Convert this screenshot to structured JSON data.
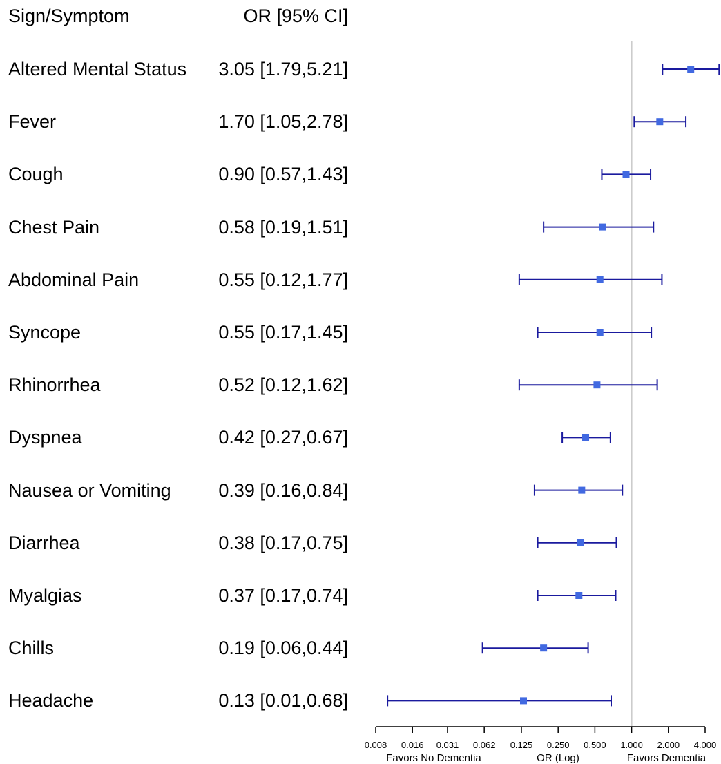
{
  "chart_data": {
    "type": "forest",
    "header": {
      "label": "Sign/Symptom",
      "stat": "OR [95% CI]"
    },
    "rows": [
      {
        "name": "Altered Mental Status",
        "or": 3.05,
        "lo": 1.79,
        "hi": 5.21,
        "text": "3.05 [1.79,5.21]"
      },
      {
        "name": "Fever",
        "or": 1.7,
        "lo": 1.05,
        "hi": 2.78,
        "text": "1.70 [1.05,2.78]"
      },
      {
        "name": "Cough",
        "or": 0.9,
        "lo": 0.57,
        "hi": 1.43,
        "text": "0.90 [0.57,1.43]"
      },
      {
        "name": "Chest Pain",
        "or": 0.58,
        "lo": 0.19,
        "hi": 1.51,
        "text": "0.58 [0.19,1.51]"
      },
      {
        "name": "Abdominal Pain",
        "or": 0.55,
        "lo": 0.12,
        "hi": 1.77,
        "text": "0.55 [0.12,1.77]"
      },
      {
        "name": "Syncope",
        "or": 0.55,
        "lo": 0.17,
        "hi": 1.45,
        "text": "0.55 [0.17,1.45]"
      },
      {
        "name": "Rhinorrhea",
        "or": 0.52,
        "lo": 0.12,
        "hi": 1.62,
        "text": "0.52 [0.12,1.62]"
      },
      {
        "name": "Dyspnea",
        "or": 0.42,
        "lo": 0.27,
        "hi": 0.67,
        "text": "0.42 [0.27,0.67]"
      },
      {
        "name": "Nausea or Vomiting",
        "or": 0.39,
        "lo": 0.16,
        "hi": 0.84,
        "text": "0.39 [0.16,0.84]"
      },
      {
        "name": "Diarrhea",
        "or": 0.38,
        "lo": 0.17,
        "hi": 0.75,
        "text": "0.38 [0.17,0.75]"
      },
      {
        "name": "Myalgias",
        "or": 0.37,
        "lo": 0.17,
        "hi": 0.74,
        "text": "0.37 [0.17,0.74]"
      },
      {
        "name": "Chills",
        "or": 0.19,
        "lo": 0.06,
        "hi": 0.44,
        "text": "0.19 [0.06,0.44]"
      },
      {
        "name": "Headache",
        "or": 0.13,
        "lo": 0.01,
        "hi": 0.68,
        "text": "0.13 [0.01,0.68]"
      }
    ],
    "x_scale": "log2",
    "x_ticks": [
      0.008,
      0.016,
      0.031,
      0.062,
      0.125,
      0.25,
      0.5,
      1,
      2,
      4
    ],
    "x_tick_labels": [
      "0.008",
      "0.016",
      "0.031",
      "0.062",
      "0.125",
      "0.250",
      "0.500",
      "1.000",
      "2.000",
      "4.000"
    ],
    "reference_line": 1,
    "xlabel": "OR (Log)",
    "left_label": "Favors No Dementia",
    "right_label": "Favors Dementia",
    "colors": {
      "point": "#4169E1",
      "ci": "#1a1a9e",
      "ref": "#cccccc",
      "axis": "#000000"
    }
  }
}
